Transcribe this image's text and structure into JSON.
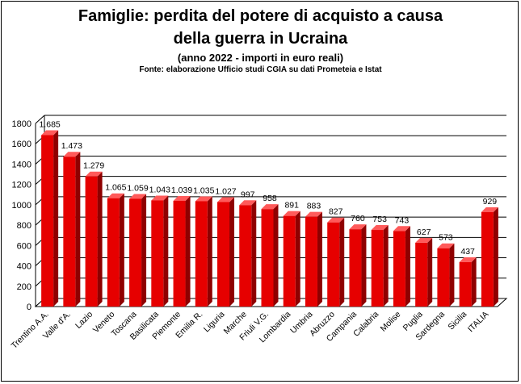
{
  "chart_data": {
    "type": "bar",
    "title": "Famiglie: perdita del potere di acquisto a causa della guerra in Ucraina",
    "title_lines": [
      "Famiglie: perdita del potere di acquisto a causa",
      "della guerra in Ucraina"
    ],
    "subtitle": "(anno 2022 - importi in euro reali)",
    "source": "Fonte: elaborazione Ufficio studi CGIA su dati Prometeia e Istat",
    "categories": [
      "Trentino A.A.",
      "Valle d'A.",
      "Lazio",
      "Veneto",
      "Toscana",
      "Basilicata",
      "Piemonte",
      "Emilia R.",
      "Liguria",
      "Marche",
      "Friuli V.G.",
      "Lombardia",
      "Umbria",
      "Abruzzo",
      "Campania",
      "Calabria",
      "Molise",
      "Puglia",
      "Sardegna",
      "Sicilia",
      "ITALIA"
    ],
    "values": [
      1685,
      1473,
      1279,
      1065,
      1059,
      1043,
      1039,
      1035,
      1027,
      997,
      958,
      891,
      883,
      827,
      760,
      753,
      743,
      627,
      573,
      437,
      929
    ],
    "value_labels": [
      "1.685",
      "1.473",
      "1.279",
      "1.065",
      "1.059",
      "1.043",
      "1.039",
      "1.035",
      "1.027",
      "997",
      "958",
      "891",
      "883",
      "827",
      "760",
      "753",
      "743",
      "627",
      "573",
      "437",
      "929"
    ],
    "yticks": [
      0,
      200,
      400,
      600,
      800,
      1000,
      1200,
      1400,
      1600,
      1800
    ],
    "ylim": [
      0,
      1800
    ],
    "grid": true,
    "legend": "none",
    "bar_color": "#e60000"
  }
}
